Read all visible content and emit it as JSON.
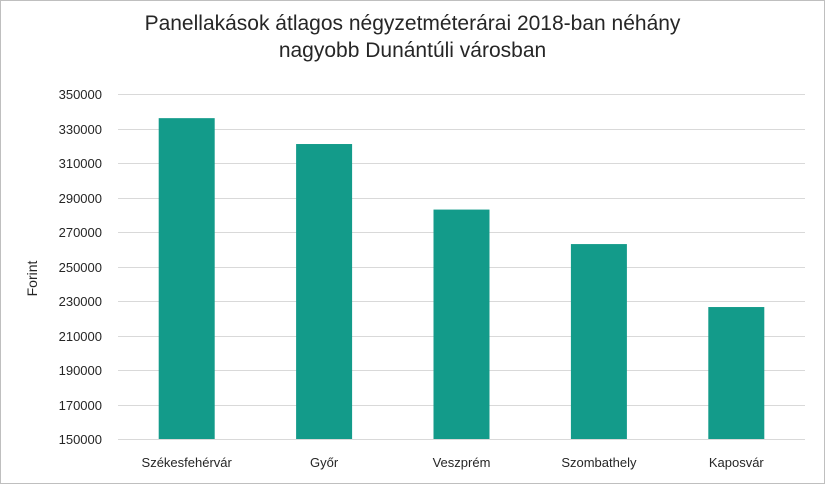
{
  "chart_data": {
    "type": "bar",
    "title_line1": "Panellakások átlagos négyzetméterárai 2018-ban néhány",
    "title_line2": "nagyobb Dunántúli városban",
    "xlabel": "",
    "ylabel": "Forint",
    "categories": [
      "Székesfehérvár",
      "Győr",
      "Veszprém",
      "Szombathely",
      "Kaposvár"
    ],
    "values": [
      336000,
      321000,
      283000,
      263000,
      226500
    ],
    "ylim": [
      150000,
      350000
    ],
    "yticks": [
      "150000",
      "170000",
      "190000",
      "210000",
      "230000",
      "250000",
      "270000",
      "290000",
      "310000",
      "330000",
      "350000"
    ],
    "grid": true,
    "legend": "none",
    "bar_color": "#139b8a",
    "grid_color": "#d9d9d9"
  }
}
